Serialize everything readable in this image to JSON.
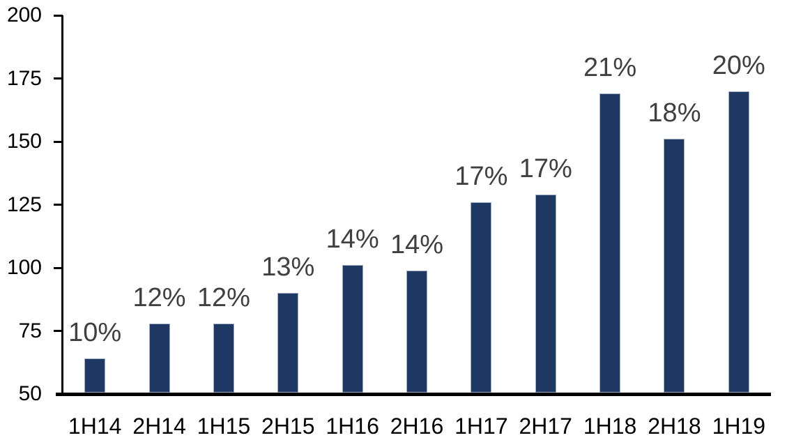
{
  "chart_data": {
    "type": "bar",
    "categories": [
      "1H14",
      "2H14",
      "1H15",
      "2H15",
      "1H16",
      "2H16",
      "1H17",
      "2H17",
      "1H18",
      "2H18",
      "1H19"
    ],
    "values": [
      64,
      78,
      78,
      90,
      101,
      99,
      126,
      129,
      169,
      151,
      170
    ],
    "data_labels": [
      "10%",
      "12%",
      "12%",
      "13%",
      "14%",
      "14%",
      "17%",
      "17%",
      "21%",
      "18%",
      "20%"
    ],
    "title": "",
    "xlabel": "",
    "ylabel": "",
    "ylim": [
      50,
      200
    ],
    "yticks": [
      50,
      75,
      100,
      125,
      150,
      175,
      200
    ],
    "grid": false,
    "legend": false,
    "colors": {
      "bar_fill": "#1F3864",
      "bar_border": "#9FAEC6",
      "data_label": "#404040",
      "axis": "#000000",
      "background": "#FFFFFF"
    }
  }
}
